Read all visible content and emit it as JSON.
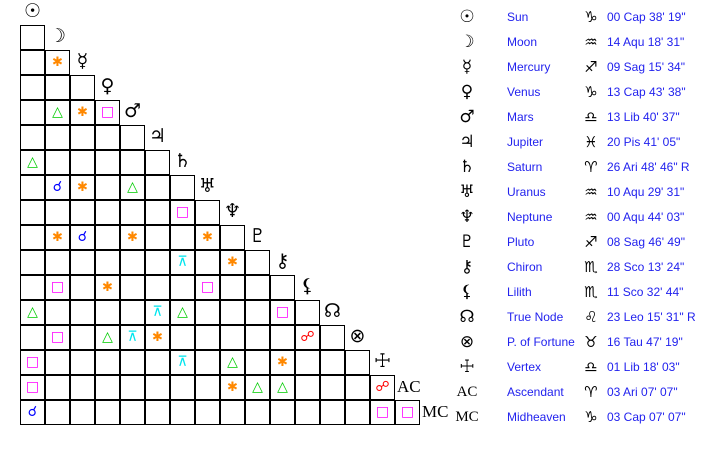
{
  "planets": [
    {
      "glyph": "☉",
      "name": "Sun",
      "sign_glyph": "♑",
      "position": "00 Cap 38' 19\""
    },
    {
      "glyph": "☽",
      "name": "Moon",
      "sign_glyph": "♒",
      "position": "14 Aqu 18' 31\""
    },
    {
      "glyph": "☿",
      "name": "Mercury",
      "sign_glyph": "♐",
      "position": "09 Sag 15' 34\""
    },
    {
      "glyph": "♀",
      "name": "Venus",
      "sign_glyph": "♑",
      "position": "13 Cap 43' 38\""
    },
    {
      "glyph": "♂",
      "name": "Mars",
      "sign_glyph": "♎",
      "position": "13 Lib 40' 37\""
    },
    {
      "glyph": "♃",
      "name": "Jupiter",
      "sign_glyph": "♓",
      "position": "20 Pis 41' 05\""
    },
    {
      "glyph": "♄",
      "name": "Saturn",
      "sign_glyph": "♈",
      "position": "26 Ari 48' 46\" R"
    },
    {
      "glyph": "♅",
      "name": "Uranus",
      "sign_glyph": "♒",
      "position": "10 Aqu 29' 31\""
    },
    {
      "glyph": "♆",
      "name": "Neptune",
      "sign_glyph": "♒",
      "position": "00 Aqu 44' 03\""
    },
    {
      "glyph": "♇",
      "name": "Pluto",
      "sign_glyph": "♐",
      "position": "08 Sag 46' 49\""
    },
    {
      "glyph": "⚷",
      "name": "Chiron",
      "sign_glyph": "♏",
      "position": "28 Sco 13' 24\""
    },
    {
      "glyph": "⚸",
      "name": "Lilith",
      "sign_glyph": "♏",
      "position": "11 Sco 32' 44\""
    },
    {
      "glyph": "☊",
      "name": "True Node",
      "sign_glyph": "♌",
      "position": "23 Leo 15' 31\" R"
    },
    {
      "glyph": "⊗",
      "name": "P. of Fortune",
      "sign_glyph": "♉",
      "position": "16 Tau 47' 19\""
    },
    {
      "glyph": "☩",
      "name": "Vertex",
      "sign_glyph": "♎",
      "position": "01 Lib 18' 03\""
    },
    {
      "glyph": "AC",
      "name": "Ascendant",
      "sign_glyph": "♈",
      "position": "03 Ari 07' 07\""
    },
    {
      "glyph": "MC",
      "name": "Midheaven",
      "sign_glyph": "♑",
      "position": "03 Cap 07' 07\""
    }
  ],
  "aspect_types": {
    "conjunction": {
      "glyph": "☌",
      "color": "#0000ff"
    },
    "sextile": {
      "glyph": "✱",
      "color": "#ff8800"
    },
    "square": {
      "glyph": "□",
      "color": "#ff00ff"
    },
    "trine": {
      "glyph": "△",
      "color": "#00cc00"
    },
    "quincunx": {
      "glyph": "⊼",
      "color": "#00e5ee"
    },
    "opposition": {
      "glyph": "☍",
      "color": "#ff0000"
    }
  },
  "aspects": [
    [
      "Mercury",
      "Moon",
      "sextile"
    ],
    [
      "Mars",
      "Moon",
      "trine"
    ],
    [
      "Mars",
      "Mercury",
      "sextile"
    ],
    [
      "Mars",
      "Venus",
      "square"
    ],
    [
      "Saturn",
      "Sun",
      "trine"
    ],
    [
      "Uranus",
      "Moon",
      "conjunction"
    ],
    [
      "Uranus",
      "Mercury",
      "sextile"
    ],
    [
      "Uranus",
      "Mars",
      "trine"
    ],
    [
      "Neptune",
      "Saturn",
      "square"
    ],
    [
      "Pluto",
      "Moon",
      "sextile"
    ],
    [
      "Pluto",
      "Mercury",
      "conjunction"
    ],
    [
      "Pluto",
      "Mars",
      "sextile"
    ],
    [
      "Pluto",
      "Uranus",
      "sextile"
    ],
    [
      "Chiron",
      "Saturn",
      "quincunx"
    ],
    [
      "Chiron",
      "Neptune",
      "sextile"
    ],
    [
      "Lilith",
      "Moon",
      "square"
    ],
    [
      "Lilith",
      "Venus",
      "sextile"
    ],
    [
      "Lilith",
      "Uranus",
      "square"
    ],
    [
      "True Node",
      "Sun",
      "trine"
    ],
    [
      "True Node",
      "Jupiter",
      "quincunx"
    ],
    [
      "True Node",
      "Saturn",
      "trine"
    ],
    [
      "True Node",
      "Chiron",
      "square"
    ],
    [
      "P. of Fortune",
      "Moon",
      "square"
    ],
    [
      "P. of Fortune",
      "Venus",
      "trine"
    ],
    [
      "P. of Fortune",
      "Mars",
      "quincunx"
    ],
    [
      "P. of Fortune",
      "Jupiter",
      "sextile"
    ],
    [
      "P. of Fortune",
      "Lilith",
      "opposition"
    ],
    [
      "Vertex",
      "Sun",
      "square"
    ],
    [
      "Vertex",
      "Saturn",
      "quincunx"
    ],
    [
      "Vertex",
      "Neptune",
      "trine"
    ],
    [
      "Vertex",
      "Chiron",
      "sextile"
    ],
    [
      "Ascendant",
      "Sun",
      "square"
    ],
    [
      "Ascendant",
      "Neptune",
      "sextile"
    ],
    [
      "Ascendant",
      "Pluto",
      "trine"
    ],
    [
      "Ascendant",
      "Chiron",
      "trine"
    ],
    [
      "Ascendant",
      "Vertex",
      "opposition"
    ],
    [
      "Midheaven",
      "Sun",
      "conjunction"
    ],
    [
      "Midheaven",
      "Vertex",
      "square"
    ],
    [
      "Midheaven",
      "Ascendant",
      "square"
    ]
  ]
}
